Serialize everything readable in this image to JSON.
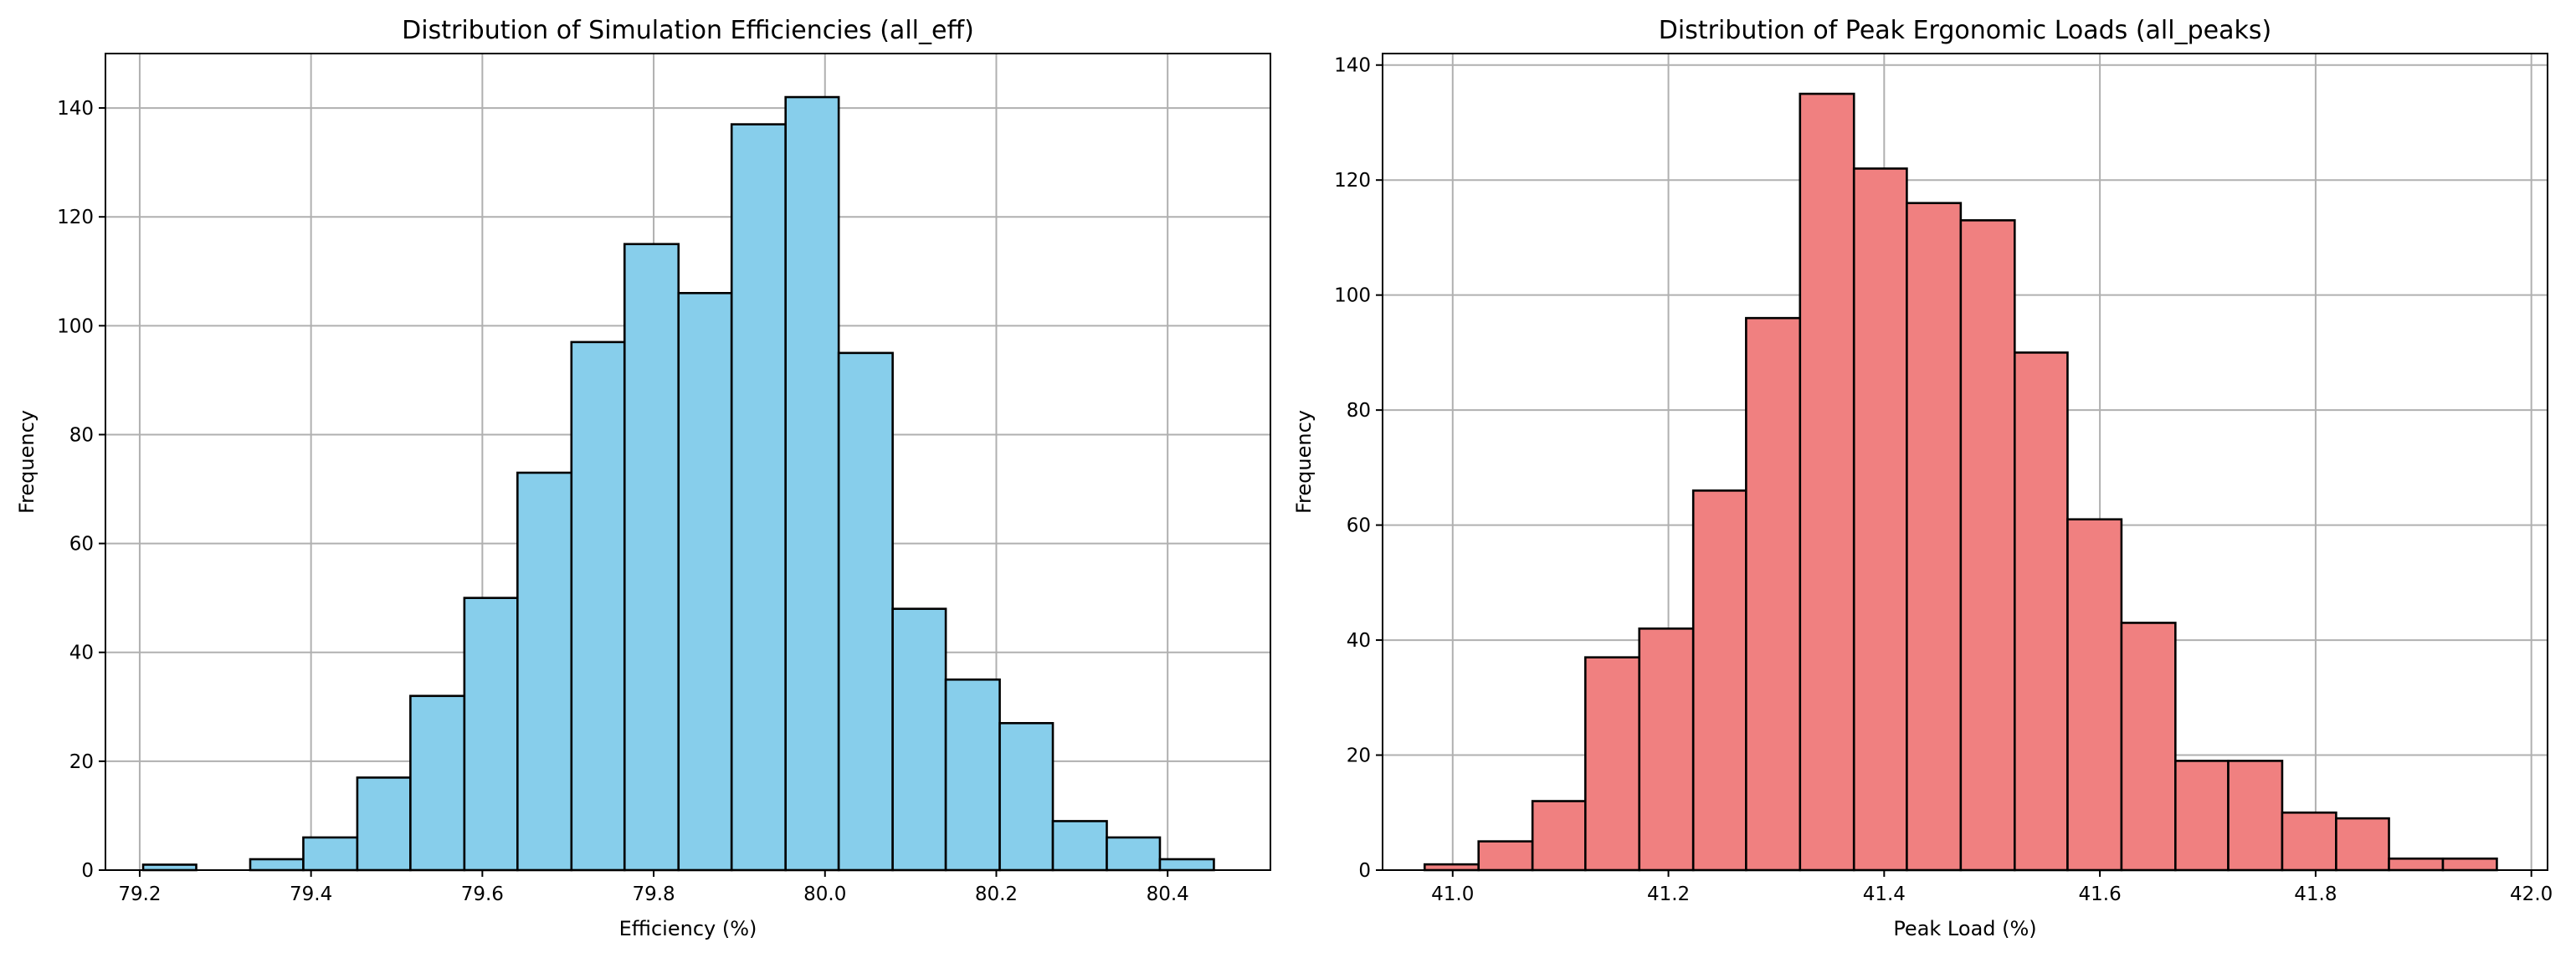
{
  "chart_data": [
    {
      "type": "bar",
      "title": "Distribution of Simulation Efficiencies (all_eff)",
      "xlabel": "Efficiency (%)",
      "ylabel": "Frequency",
      "bar_color": "#87ceeb",
      "edge_color": "#000000",
      "grid": true,
      "xlim": [
        79.16,
        80.52
      ],
      "ylim": [
        0,
        150
      ],
      "xticks": [
        79.2,
        79.4,
        79.6,
        79.8,
        80.0,
        80.2,
        80.4
      ],
      "xtick_labels": [
        "79.2",
        "79.4",
        "79.6",
        "79.8",
        "80.0",
        "80.2",
        "80.4"
      ],
      "yticks": [
        0,
        20,
        40,
        60,
        80,
        100,
        120,
        140
      ],
      "ytick_labels": [
        "0",
        "20",
        "40",
        "60",
        "80",
        "100",
        "120",
        "140"
      ],
      "bin_edges": [
        79.204,
        79.266,
        79.329,
        79.391,
        79.454,
        79.516,
        79.579,
        79.641,
        79.704,
        79.766,
        79.829,
        79.891,
        79.954,
        80.016,
        80.079,
        80.141,
        80.204,
        80.266,
        80.329,
        80.391,
        80.454
      ],
      "values": [
        1,
        0,
        2,
        6,
        17,
        32,
        50,
        73,
        97,
        115,
        106,
        137,
        142,
        95,
        48,
        35,
        27,
        9,
        6,
        2
      ]
    },
    {
      "type": "bar",
      "title": "Distribution of Peak Ergonomic Loads (all_peaks)",
      "xlabel": "Peak Load (%)",
      "ylabel": "Frequency",
      "bar_color": "#f08080",
      "edge_color": "#000000",
      "grid": true,
      "xlim": [
        40.935,
        42.015
      ],
      "ylim": [
        0,
        142
      ],
      "xticks": [
        41.0,
        41.2,
        41.4,
        41.6,
        41.8,
        42.0
      ],
      "xtick_labels": [
        "41.0",
        "41.2",
        "41.4",
        "41.6",
        "41.8",
        "42.0"
      ],
      "yticks": [
        0,
        20,
        40,
        60,
        80,
        100,
        120,
        140
      ],
      "ytick_labels": [
        "0",
        "20",
        "40",
        "60",
        "80",
        "100",
        "120",
        "140"
      ],
      "bin_edges": [
        40.974,
        41.024,
        41.074,
        41.123,
        41.173,
        41.223,
        41.272,
        41.322,
        41.372,
        41.421,
        41.471,
        41.521,
        41.57,
        41.62,
        41.67,
        41.719,
        41.769,
        41.819,
        41.868,
        41.918,
        41.968
      ],
      "values": [
        1,
        5,
        12,
        37,
        42,
        66,
        96,
        135,
        122,
        116,
        113,
        90,
        61,
        43,
        19,
        19,
        10,
        9,
        2,
        2
      ]
    }
  ]
}
